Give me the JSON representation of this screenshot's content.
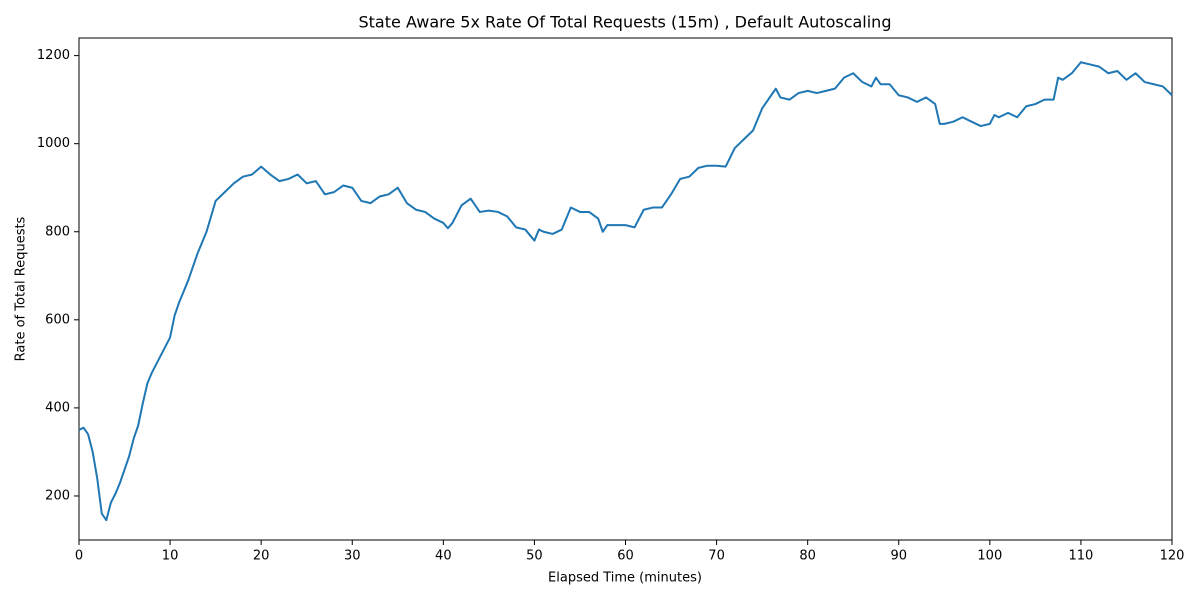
{
  "chart_data": {
    "type": "line",
    "title": "State Aware 5x Rate Of Total Requests (15m) , Default Autoscaling",
    "x_label": "Elapsed Time (minutes)",
    "y_label": "Rate of Total Requests",
    "x": [
      0,
      0.5,
      1,
      1.5,
      2,
      2.5,
      3,
      3.5,
      4,
      4.5,
      5,
      5.5,
      6,
      6.5,
      7,
      7.5,
      8,
      9,
      10,
      10.5,
      11,
      12,
      13,
      14,
      15,
      16,
      17,
      18,
      19,
      20,
      21,
      22,
      23,
      24,
      25,
      26,
      27,
      28,
      29,
      30,
      31,
      32,
      33,
      34,
      35,
      36,
      37,
      38,
      39,
      40,
      40.5,
      41,
      42,
      43,
      44,
      45,
      46,
      47,
      48,
      49,
      50,
      50.5,
      51,
      52,
      53,
      54,
      55,
      56,
      57,
      57.5,
      58,
      59,
      60,
      61,
      62,
      63,
      64,
      65,
      66,
      67,
      68,
      69,
      70,
      71,
      72,
      73,
      74,
      75,
      76,
      76.5,
      77,
      78,
      79,
      80,
      81,
      82,
      83,
      84,
      85,
      86,
      87,
      87.5,
      88,
      89,
      90,
      91,
      92,
      93,
      94,
      94.5,
      95,
      96,
      97,
      98,
      99,
      100,
      100.5,
      101,
      102,
      103,
      104,
      105,
      106,
      107,
      107.5,
      108,
      109,
      110,
      111,
      112,
      113,
      114,
      115,
      116,
      117,
      118,
      119,
      120
    ],
    "series": [
      {
        "name": "Rate of Total Requests",
        "color": "#1f77b4",
        "values": [
          350,
          355,
          340,
          300,
          240,
          160,
          145,
          185,
          205,
          230,
          260,
          290,
          330,
          360,
          410,
          455,
          480,
          520,
          560,
          610,
          640,
          690,
          750,
          800,
          870,
          890,
          910,
          925,
          930,
          948,
          930,
          915,
          920,
          930,
          910,
          915,
          885,
          890,
          905,
          900,
          870,
          865,
          880,
          885,
          900,
          865,
          850,
          845,
          830,
          820,
          808,
          820,
          860,
          875,
          845,
          848,
          845,
          835,
          810,
          805,
          780,
          805,
          800,
          795,
          805,
          855,
          845,
          845,
          830,
          800,
          815,
          815,
          815,
          810,
          850,
          855,
          855,
          885,
          920,
          925,
          945,
          950,
          950,
          948,
          990,
          1010,
          1030,
          1080,
          1110,
          1125,
          1105,
          1100,
          1115,
          1120,
          1115,
          1120,
          1125,
          1150,
          1160,
          1140,
          1130,
          1150,
          1135,
          1135,
          1110,
          1105,
          1095,
          1105,
          1090,
          1045,
          1045,
          1050,
          1060,
          1050,
          1040,
          1045,
          1065,
          1060,
          1070,
          1060,
          1085,
          1090,
          1100,
          1100,
          1150,
          1145,
          1160,
          1185,
          1180,
          1175,
          1160,
          1165,
          1145,
          1160,
          1140,
          1135,
          1130,
          1110
        ]
      }
    ],
    "xlim": [
      0,
      120
    ],
    "ylim": [
      100,
      1240
    ],
    "xticks": [
      0,
      10,
      20,
      30,
      40,
      50,
      60,
      70,
      80,
      90,
      100,
      110,
      120
    ],
    "yticks": [
      200,
      400,
      600,
      800,
      1000,
      1200
    ]
  }
}
